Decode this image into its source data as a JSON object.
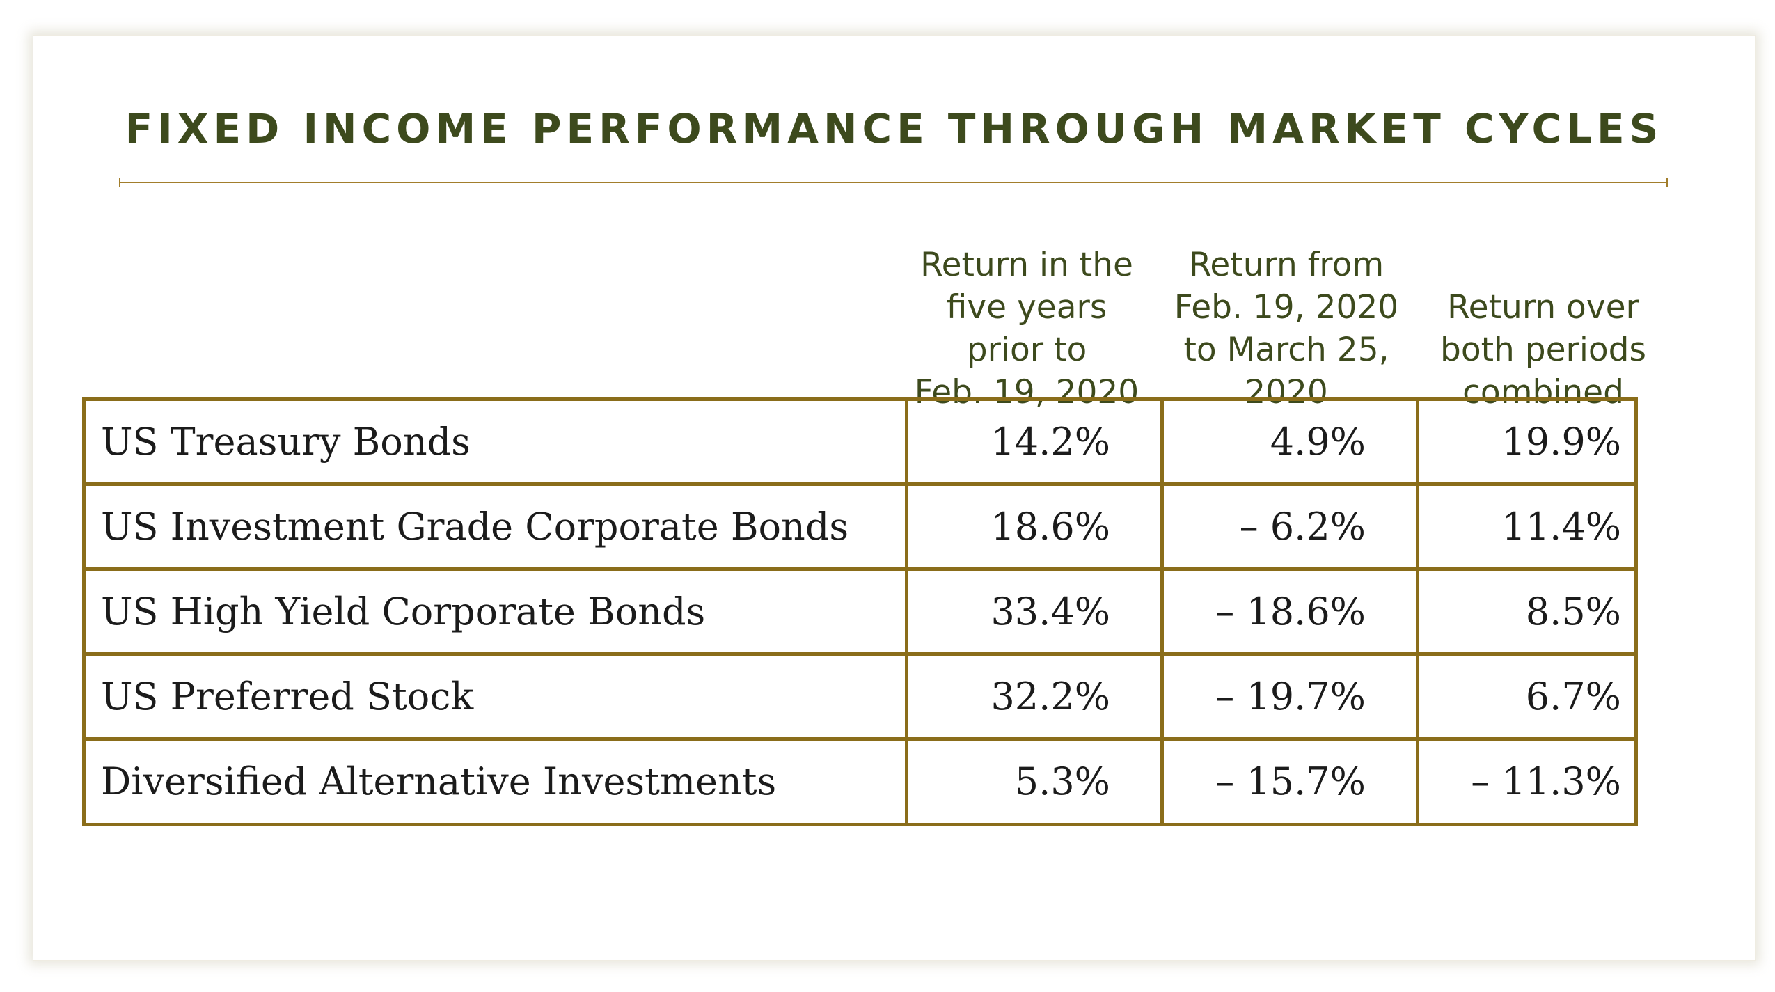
{
  "chart_data": {
    "type": "table",
    "title": "FIXED INCOME PERFORMANCE THROUGH MARKET CYCLES",
    "columns": [
      [
        "Return in the",
        "five years",
        "prior to",
        "Feb. 19, 2020"
      ],
      [
        "Return from",
        "Feb. 19, 2020",
        "to March 25,",
        "2020"
      ],
      [
        "Return over",
        "both periods",
        "combined"
      ]
    ],
    "rows": [
      {
        "label": "US Treasury Bonds",
        "values": [
          "14.2%",
          "4.9%",
          "19.9%"
        ]
      },
      {
        "label": "US Investment Grade Corporate Bonds",
        "values": [
          "18.6%",
          "– 6.2%",
          "11.4%"
        ]
      },
      {
        "label": "US High Yield Corporate Bonds",
        "values": [
          "33.4%",
          "– 18.6%",
          "8.5%"
        ]
      },
      {
        "label": "US Preferred Stock",
        "values": [
          "32.2%",
          "– 19.7%",
          "6.7%"
        ]
      },
      {
        "label": "Diversified Alternative Investments",
        "values": [
          "5.3%",
          "– 15.7%",
          "– 11.3%"
        ]
      }
    ],
    "numeric_values": [
      [
        14.2,
        4.9,
        19.9
      ],
      [
        18.6,
        -6.2,
        11.4
      ],
      [
        33.4,
        -18.6,
        8.5
      ],
      [
        32.2,
        -19.7,
        6.7
      ],
      [
        5.3,
        -15.7,
        -11.3
      ]
    ]
  },
  "colors": {
    "title": "#3d4a1d",
    "border": "#8a6d1a",
    "rule": "#a27e2c",
    "text": "#1b1b1b"
  }
}
